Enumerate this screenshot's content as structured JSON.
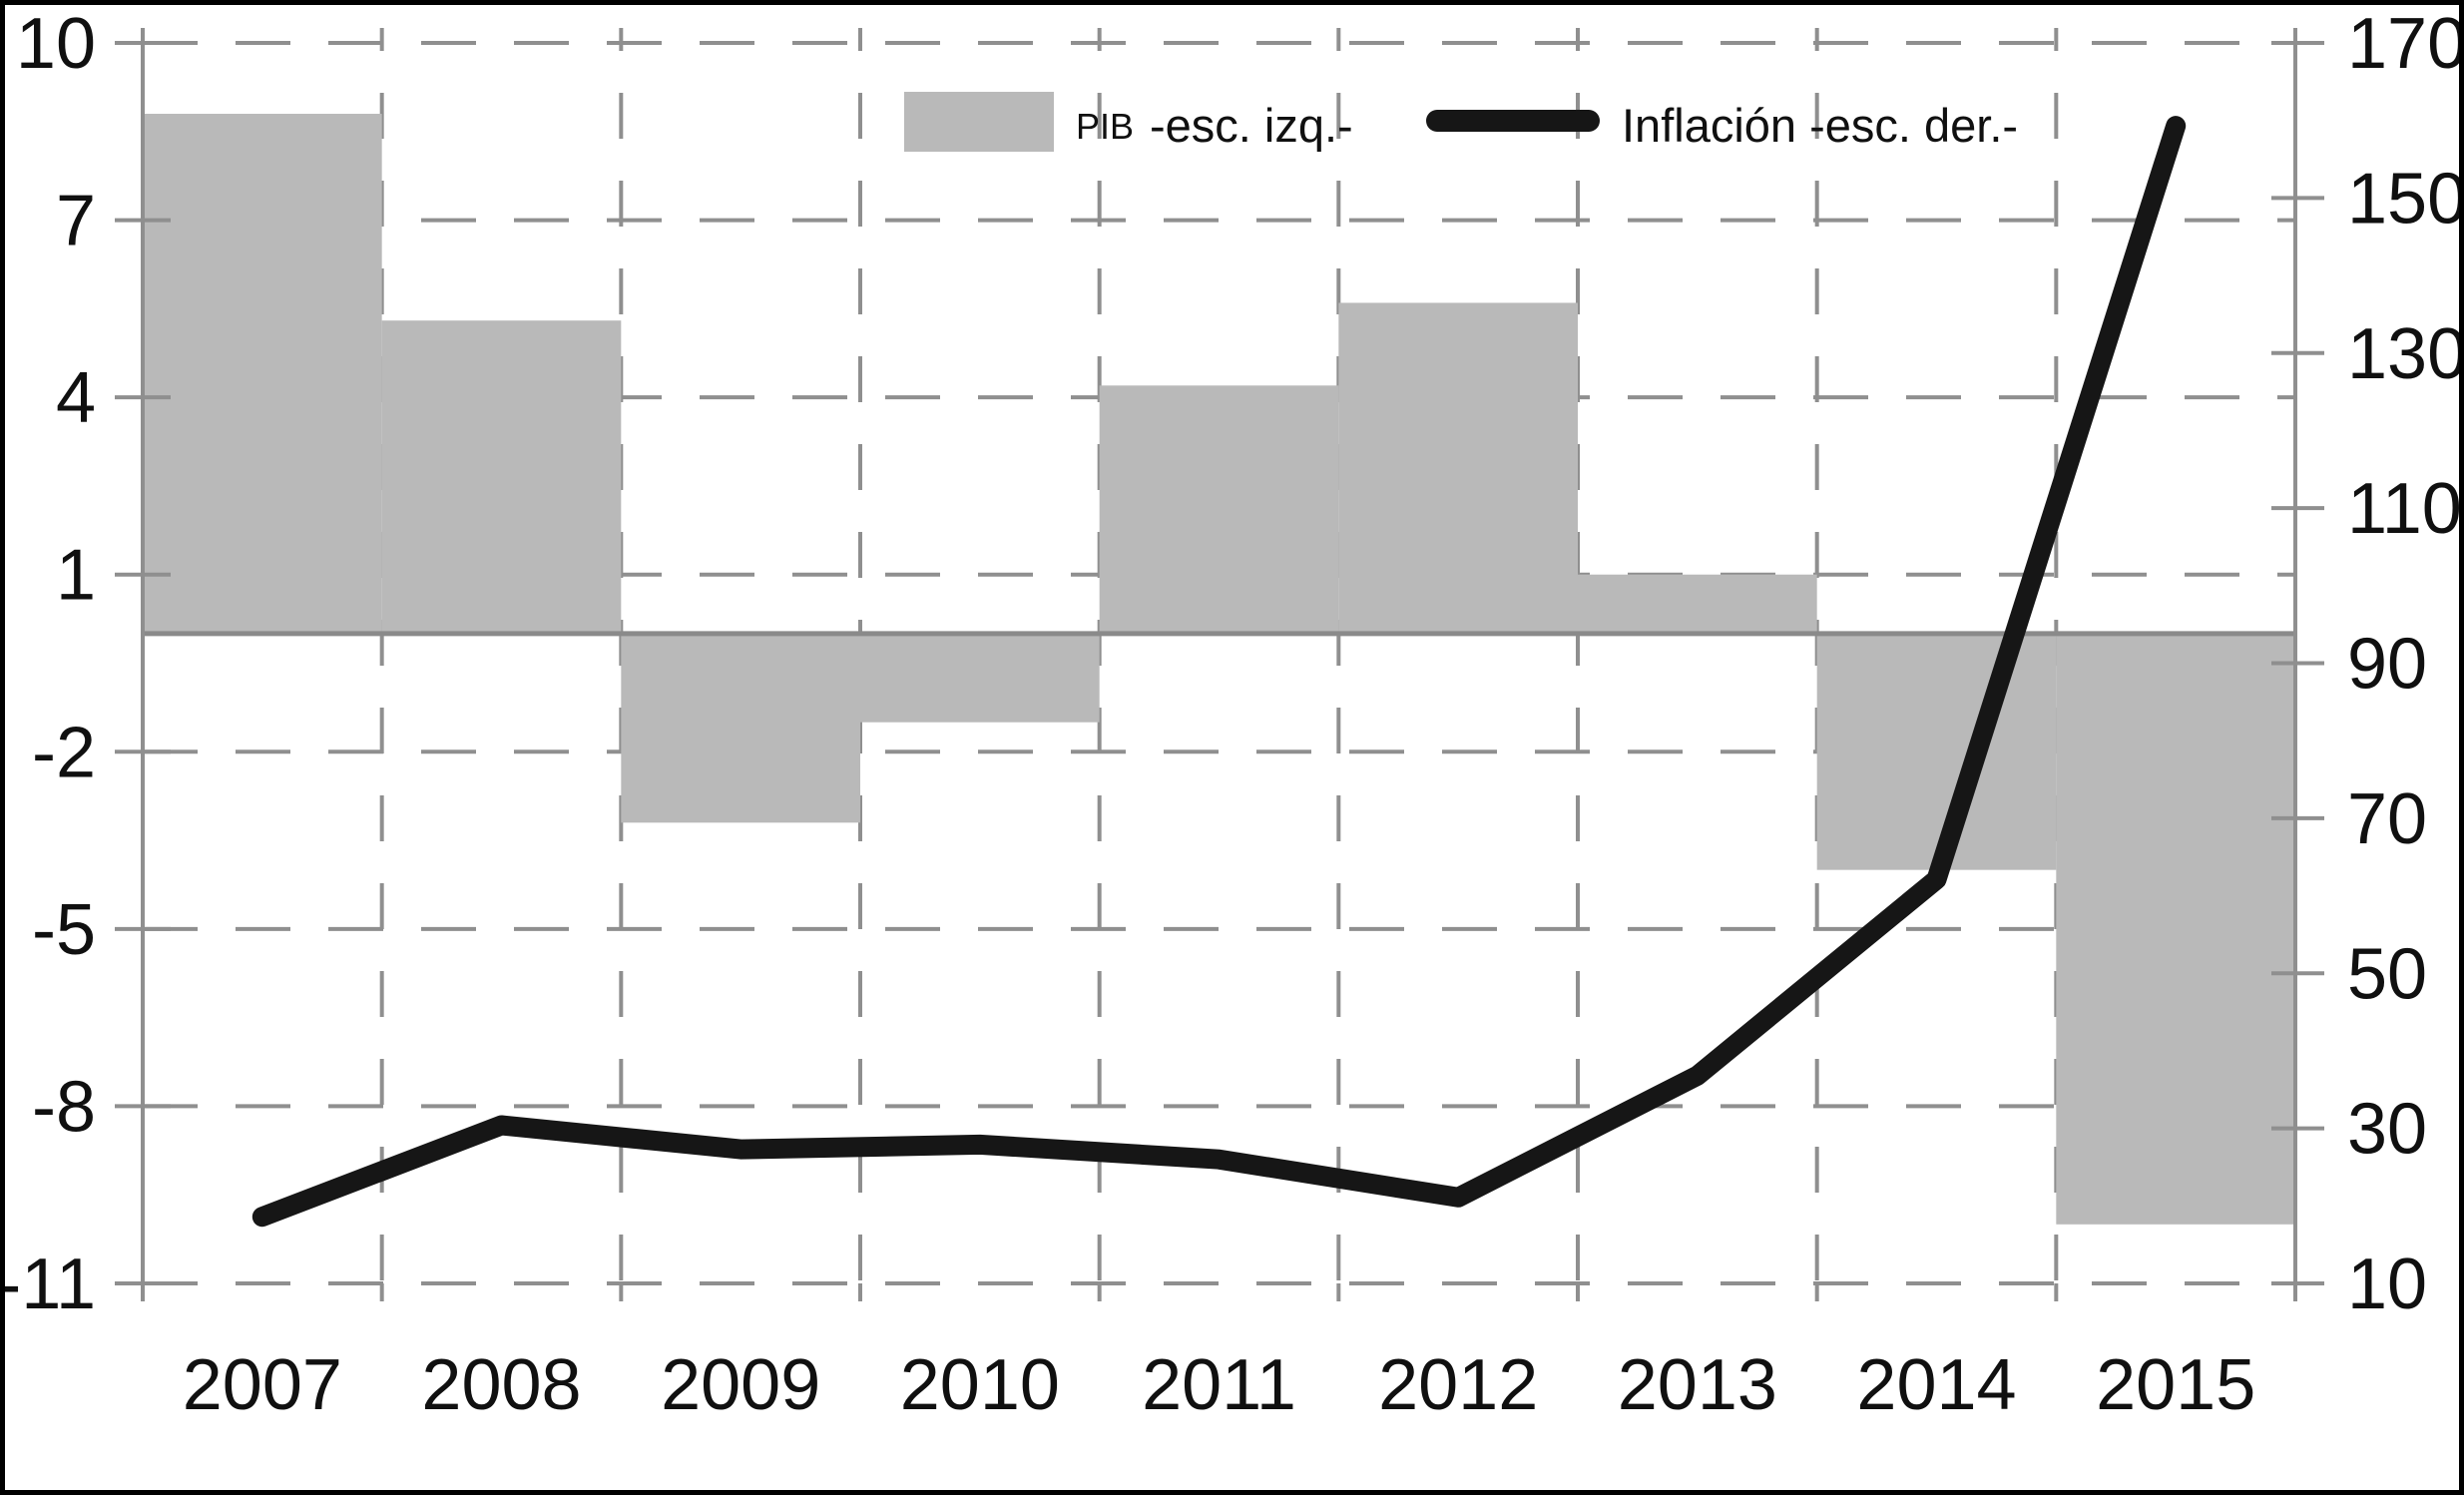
{
  "chart_data": {
    "type": "bar",
    "subtype": "dual-axis bar+line",
    "categories": [
      "2007",
      "2008",
      "2009",
      "2010",
      "2011",
      "2012",
      "2013",
      "2014",
      "2015"
    ],
    "series": [
      {
        "name": "PIB -esc. izq.-",
        "type": "bar",
        "axis": "left",
        "values": [
          8.8,
          5.3,
          -3.2,
          -1.5,
          4.2,
          5.6,
          1.0,
          -4.0,
          -10.0
        ],
        "color": "#b9b9b9"
      },
      {
        "name": "Inflación -esc. der.-",
        "type": "line",
        "axis": "right",
        "values": [
          18.6,
          30.4,
          27.3,
          27.9,
          26.0,
          21.1,
          36.8,
          62.1,
          159.3
        ],
        "color": "#161616"
      }
    ],
    "title": "",
    "xlabel": "",
    "ylabel_left": "",
    "ylabel_right": "",
    "left_axis": {
      "max": 10,
      "min": -11,
      "ticks": [
        10,
        7,
        4,
        1,
        -2,
        -5,
        -8,
        -11
      ]
    },
    "right_axis": {
      "max": 170,
      "min": 10,
      "ticks": [
        170,
        150,
        130,
        110,
        90,
        70,
        50,
        30,
        10
      ]
    },
    "grid": "dashed gray, horizontal lines follow left-axis ticks, vertical lines at year boundaries",
    "zero_line": "solid gray at left-axis 0",
    "legend_position": "top-center-inside"
  },
  "legend": {
    "pib_prefix": "PIB",
    "pib_label": "-esc. izq.-",
    "inflacion_label": "Inflación -esc. der.-"
  },
  "colors": {
    "bar": "#b9b9b9",
    "line": "#161616",
    "grid": "#8f8f8f",
    "zero_line": "#8a8a8a",
    "axis": "#8f8f8f",
    "text": "#101010",
    "border": "#000000",
    "background": "#ffffff"
  }
}
